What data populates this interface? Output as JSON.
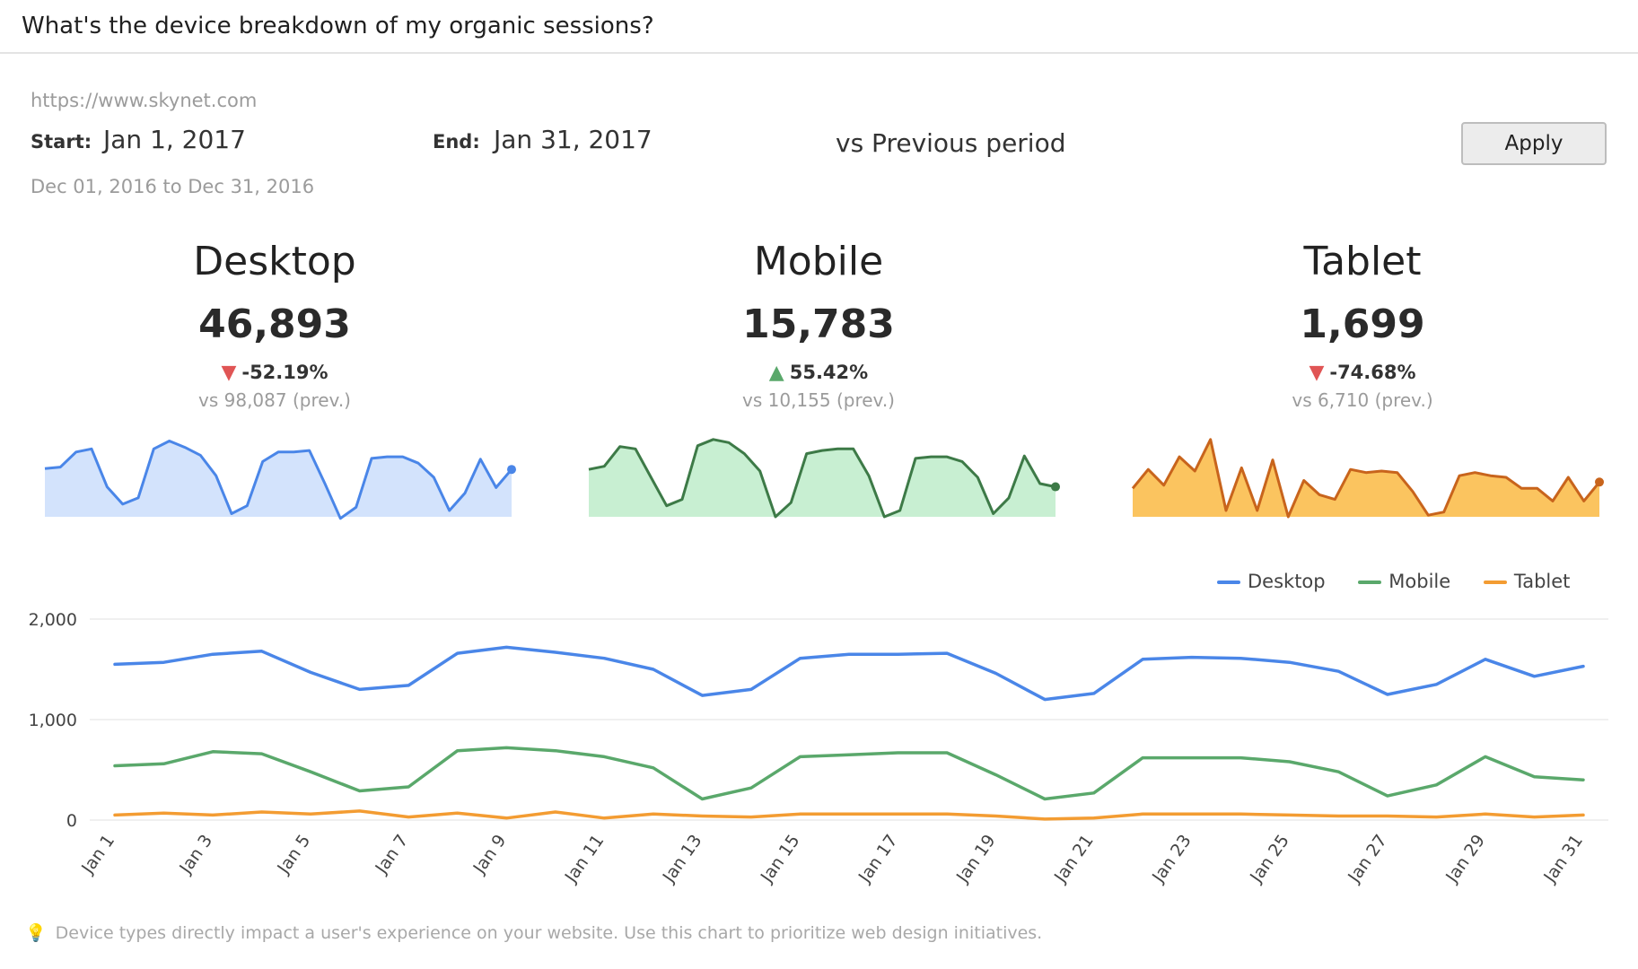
{
  "header": {
    "title": "What's the device breakdown of my organic sessions?"
  },
  "filters": {
    "url": "https://www.skynet.com",
    "start_label": "Start:",
    "start_value": "Jan 1, 2017",
    "end_label": "End:",
    "end_value": "Jan 31, 2017",
    "comparison": "vs Previous period",
    "previous_range": "Dec 01, 2016 to Dec 31, 2016",
    "apply_label": "Apply"
  },
  "kpis": [
    {
      "name": "Desktop",
      "value": "46,893",
      "change": "-52.19%",
      "direction": "down",
      "prev": "vs 98,087 (prev.)"
    },
    {
      "name": "Mobile",
      "value": "15,783",
      "change": "55.42%",
      "direction": "up",
      "prev": "vs 10,155 (prev.)"
    },
    {
      "name": "Tablet",
      "value": "1,699",
      "change": "-74.68%",
      "direction": "down",
      "prev": "vs 6,710 (prev.)"
    }
  ],
  "colors": {
    "desktop": "#4a86e8",
    "mobile": "#5aa86b",
    "tablet": "#f39c32",
    "down": "#e05555",
    "up": "#5aa86b"
  },
  "chart_data": [
    {
      "type": "area",
      "title": "Desktop",
      "values": [
        0.61,
        0.63,
        0.82,
        0.86,
        0.38,
        0.16,
        0.24,
        0.86,
        0.96,
        0.88,
        0.78,
        0.52,
        0.04,
        0.14,
        0.7,
        0.82,
        0.82,
        0.84,
        0.42,
        -0.02,
        0.12,
        0.74,
        0.76,
        0.76,
        0.68,
        0.5,
        0.08,
        0.3,
        0.73,
        0.37,
        0.6
      ]
    },
    {
      "type": "area",
      "title": "Mobile",
      "values": [
        0.6,
        0.64,
        0.89,
        0.86,
        0.5,
        0.14,
        0.22,
        0.9,
        0.98,
        0.94,
        0.8,
        0.58,
        0.0,
        0.18,
        0.8,
        0.84,
        0.86,
        0.86,
        0.52,
        0.0,
        0.08,
        0.74,
        0.76,
        0.76,
        0.7,
        0.5,
        0.04,
        0.24,
        0.77,
        0.42,
        0.38
      ]
    },
    {
      "type": "area",
      "title": "Tablet",
      "values": [
        0.36,
        0.6,
        0.4,
        0.76,
        0.58,
        0.98,
        0.08,
        0.62,
        0.08,
        0.72,
        0.0,
        0.46,
        0.28,
        0.22,
        0.6,
        0.56,
        0.58,
        0.56,
        0.32,
        0.02,
        0.06,
        0.52,
        0.56,
        0.52,
        0.5,
        0.36,
        0.36,
        0.2,
        0.5,
        0.2,
        0.44
      ]
    },
    {
      "type": "line",
      "title": "",
      "xlabel": "",
      "ylabel": "",
      "ylim": [
        0,
        2000
      ],
      "yticks": [
        0,
        1000,
        2000
      ],
      "ytick_labels": [
        "0",
        "1,000",
        "2,000"
      ],
      "categories": [
        "Jan 1",
        "Jan 2",
        "Jan 3",
        "Jan 4",
        "Jan 5",
        "Jan 6",
        "Jan 7",
        "Jan 8",
        "Jan 9",
        "Jan 10",
        "Jan 11",
        "Jan 12",
        "Jan 13",
        "Jan 14",
        "Jan 15",
        "Jan 16",
        "Jan 17",
        "Jan 18",
        "Jan 19",
        "Jan 20",
        "Jan 21",
        "Jan 22",
        "Jan 23",
        "Jan 24",
        "Jan 25",
        "Jan 26",
        "Jan 27",
        "Jan 28",
        "Jan 29",
        "Jan 30",
        "Jan 31"
      ],
      "xtick_labels": [
        "Jan 1",
        "Jan 3",
        "Jan 5",
        "Jan 7",
        "Jan 9",
        "Jan 11",
        "Jan 13",
        "Jan 15",
        "Jan 17",
        "Jan 19",
        "Jan 21",
        "Jan 23",
        "Jan 25",
        "Jan 27",
        "Jan 29",
        "Jan 31"
      ],
      "legend": "top-right",
      "series": [
        {
          "name": "Desktop",
          "values": [
            1550,
            1570,
            1650,
            1680,
            1470,
            1300,
            1340,
            1660,
            1720,
            1670,
            1610,
            1500,
            1240,
            1300,
            1610,
            1650,
            1650,
            1660,
            1460,
            1200,
            1260,
            1600,
            1620,
            1610,
            1570,
            1480,
            1250,
            1350,
            1600,
            1430,
            1530
          ]
        },
        {
          "name": "Mobile",
          "values": [
            540,
            560,
            680,
            660,
            480,
            290,
            330,
            690,
            720,
            690,
            630,
            520,
            210,
            320,
            630,
            650,
            670,
            670,
            450,
            210,
            270,
            620,
            620,
            620,
            580,
            480,
            240,
            350,
            630,
            430,
            400
          ]
        },
        {
          "name": "Tablet",
          "values": [
            50,
            70,
            50,
            80,
            60,
            90,
            30,
            70,
            20,
            80,
            20,
            60,
            40,
            30,
            60,
            60,
            60,
            60,
            40,
            10,
            20,
            60,
            60,
            60,
            50,
            40,
            40,
            30,
            60,
            30,
            50
          ]
        }
      ]
    }
  ],
  "footer": {
    "tip": "Device types directly impact a user's experience on your website. Use this chart to prioritize web design initiatives."
  }
}
